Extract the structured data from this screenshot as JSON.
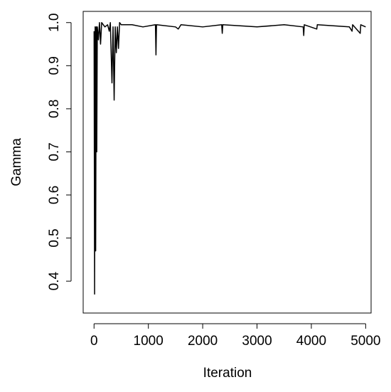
{
  "chart_data": {
    "type": "line",
    "x_label": "Iteration",
    "y_label": "Gamma",
    "x": [
      1,
      10,
      20,
      30,
      40,
      50,
      60,
      80,
      100,
      120,
      140,
      200,
      250,
      280,
      300,
      330,
      350,
      370,
      390,
      410,
      430,
      450,
      470,
      500,
      700,
      900,
      1130,
      1140,
      1150,
      1500,
      1550,
      1600,
      2000,
      2350,
      2360,
      2370,
      3000,
      3500,
      3850,
      3860,
      3870,
      4100,
      4110,
      4700,
      4750,
      4760,
      4900,
      4910,
      5000
    ],
    "series": [
      {
        "color": "#000000",
        "values": [
          0.98,
          0.37,
          0.99,
          0.47,
          0.99,
          0.7,
          0.99,
          0.96,
          1.0,
          0.95,
          1.0,
          0.99,
          0.995,
          0.98,
          1.0,
          0.86,
          0.99,
          0.82,
          0.99,
          0.93,
          0.99,
          0.94,
          1.0,
          0.995,
          0.995,
          0.99,
          0.995,
          0.925,
          0.995,
          0.99,
          0.985,
          0.995,
          0.99,
          0.995,
          0.975,
          0.995,
          0.99,
          0.995,
          0.99,
          0.97,
          0.995,
          0.985,
          0.995,
          0.99,
          0.98,
          0.995,
          0.975,
          0.995,
          0.99
        ]
      }
    ],
    "xlim": [
      -200,
      5100
    ],
    "xticks": [
      0,
      1000,
      2000,
      3000,
      4000,
      5000
    ],
    "ylim": [
      0.326,
      1.026
    ],
    "yticks": [
      0.4,
      0.5,
      0.6,
      0.7,
      0.8,
      0.9,
      {
        "value": 1,
        "label": "1.0"
      }
    ]
  }
}
